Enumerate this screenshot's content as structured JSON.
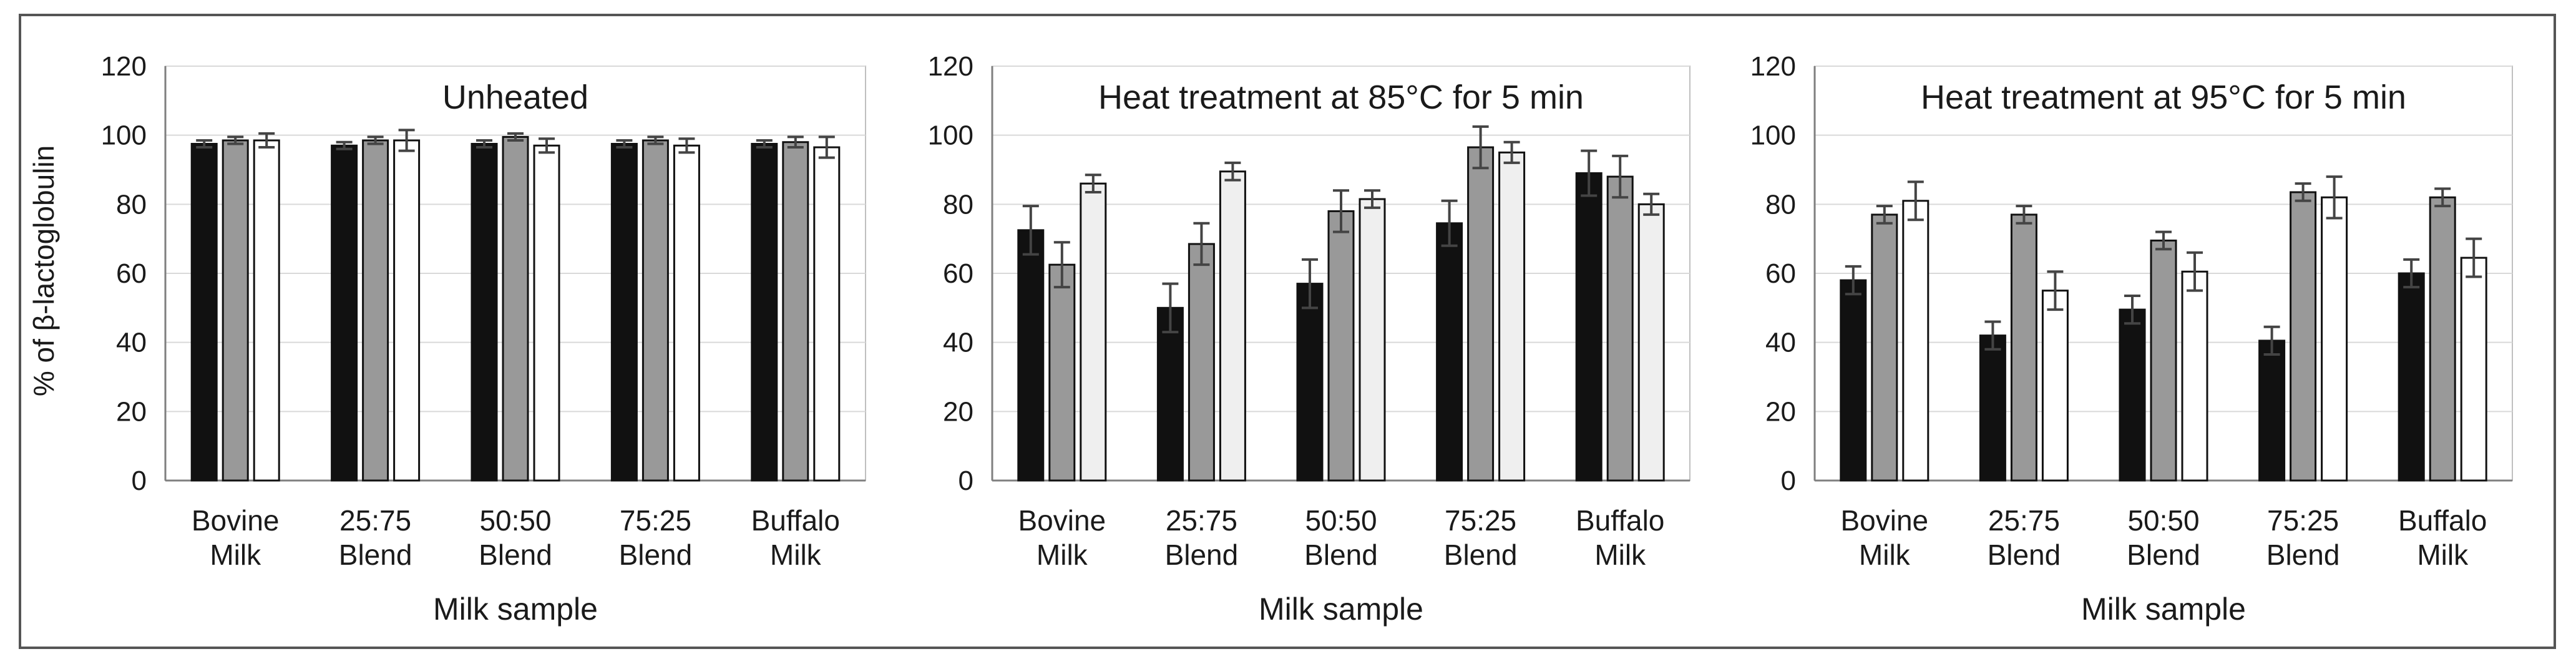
{
  "figure": {
    "ylabel": "% of β-lactoglobulin"
  },
  "chart_data": [
    {
      "type": "bar",
      "title": "Unheated",
      "xlabel": "Milk sample",
      "ylabel": "% of β-lactoglobulin",
      "ylim": [
        0,
        120
      ],
      "yticks": [
        0,
        20,
        40,
        60,
        80,
        100,
        120
      ],
      "grid": true,
      "categories": [
        [
          "Bovine",
          "Milk"
        ],
        [
          "25:75",
          "Blend"
        ],
        [
          "50:50",
          "Blend"
        ],
        [
          "75:25",
          "Blend"
        ],
        [
          "Buffalo",
          "Milk"
        ]
      ],
      "series": [
        {
          "name": "series-1",
          "color": "#111111",
          "values": [
            97.5,
            97,
            97.5,
            97.5,
            97.5
          ],
          "errors": [
            1,
            1,
            1,
            1,
            1
          ]
        },
        {
          "name": "series-2",
          "color": "#999999",
          "values": [
            98.5,
            98.5,
            99.5,
            98.5,
            98
          ],
          "errors": [
            1,
            1,
            1,
            1,
            1.5
          ]
        },
        {
          "name": "series-3",
          "color": "#ffffff",
          "values": [
            98.5,
            98.5,
            97,
            97,
            96.5
          ],
          "errors": [
            2,
            3,
            2,
            2,
            3
          ]
        }
      ]
    },
    {
      "type": "bar",
      "title": "Heat treatment at 85°C for 5 min",
      "xlabel": "Milk sample",
      "ylabel": "",
      "ylim": [
        0,
        120
      ],
      "yticks": [
        0,
        20,
        40,
        60,
        80,
        100,
        120
      ],
      "grid": true,
      "categories": [
        [
          "Bovine",
          "Milk"
        ],
        [
          "25:75",
          "Blend"
        ],
        [
          "50:50",
          "Blend"
        ],
        [
          "75:25",
          "Blend"
        ],
        [
          "Buffalo",
          "Milk"
        ]
      ],
      "series": [
        {
          "name": "series-1",
          "color": "#111111",
          "values": [
            72.5,
            50,
            57,
            74.5,
            89
          ],
          "errors": [
            7,
            7,
            7,
            6.5,
            6.5
          ]
        },
        {
          "name": "series-2",
          "color": "#999999",
          "values": [
            62.5,
            68.5,
            78,
            96.5,
            88
          ],
          "errors": [
            6.5,
            6,
            6,
            6,
            6
          ]
        },
        {
          "name": "series-3",
          "color": "#efefef",
          "values": [
            86,
            89.5,
            81.5,
            95,
            80
          ],
          "errors": [
            2.5,
            2.5,
            2.5,
            3,
            3
          ]
        }
      ]
    },
    {
      "type": "bar",
      "title": "Heat treatment at 95°C for 5 min",
      "xlabel": "Milk sample",
      "ylabel": "",
      "ylim": [
        0,
        120
      ],
      "yticks": [
        0,
        20,
        40,
        60,
        80,
        100,
        120
      ],
      "grid": true,
      "categories": [
        [
          "Bovine",
          "Milk"
        ],
        [
          "25:75",
          "Blend"
        ],
        [
          "50:50",
          "Blend"
        ],
        [
          "75:25",
          "Blend"
        ],
        [
          "Buffalo",
          "Milk"
        ]
      ],
      "series": [
        {
          "name": "series-1",
          "color": "#111111",
          "values": [
            58,
            42,
            49.5,
            40.5,
            60
          ],
          "errors": [
            4,
            4,
            4,
            4,
            4
          ]
        },
        {
          "name": "series-2",
          "color": "#999999",
          "values": [
            77,
            77,
            69.5,
            83.5,
            82
          ],
          "errors": [
            2.5,
            2.5,
            2.5,
            2.5,
            2.5
          ]
        },
        {
          "name": "series-3",
          "color": "#ffffff",
          "values": [
            81,
            55,
            60.5,
            82,
            64.5
          ],
          "errors": [
            5.5,
            5.5,
            5.5,
            6,
            5.5
          ]
        }
      ]
    }
  ]
}
